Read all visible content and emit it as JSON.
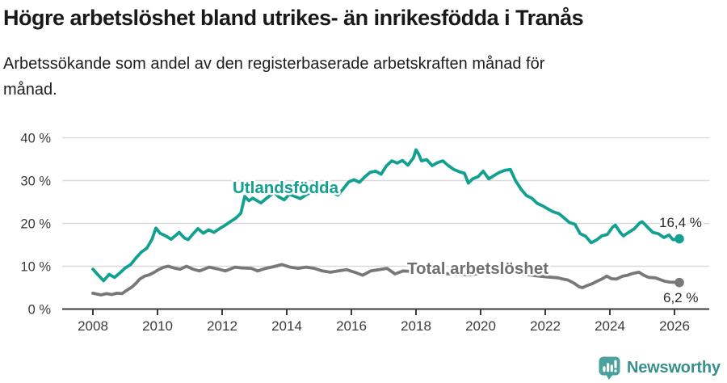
{
  "header": {
    "title": "Högre arbetslöshet bland utrikes- än inrikesfödda i Tranås",
    "subtitle": "Arbetssökande som andel av den registerbaserade arbetskraften månad för månad."
  },
  "footer": {
    "brand": "Newsworthy",
    "brand_color": "#37908B",
    "icon": "bar-chart-speech-bubble-icon",
    "icon_color": "#4BA29D"
  },
  "chart_data": {
    "type": "line",
    "title": "Högre arbetslöshet bland utrikes- än inrikesfödda i Tranås",
    "subtitle": "Arbetssökande som andel av den registerbaserade arbetskraften månad för månad.",
    "xlabel": "",
    "ylabel": "",
    "x_unit": "year (monthly series)",
    "y_unit": "percent of register-based labour force",
    "grid": "horizontal",
    "legend_position": "inline-labels",
    "colors": {
      "gridline": "#dadada",
      "axis": "#3a3a3a",
      "tick_text": "#3a3a3a",
      "end_label_text": "#2b2b2b"
    },
    "xaxis": {
      "range": [
        2007.05,
        2027.1
      ],
      "ticks": [
        {
          "value": 2008,
          "label": "2008"
        },
        {
          "value": 2010,
          "label": "2010"
        },
        {
          "value": 2012,
          "label": "2012"
        },
        {
          "value": 2014,
          "label": "2014"
        },
        {
          "value": 2016,
          "label": "2016"
        },
        {
          "value": 2018,
          "label": "2018"
        },
        {
          "value": 2020,
          "label": "2020"
        },
        {
          "value": 2022,
          "label": "2022"
        },
        {
          "value": 2024,
          "label": "2024"
        },
        {
          "value": 2026,
          "label": "2026"
        }
      ]
    },
    "yaxis": {
      "range": [
        0,
        40
      ],
      "ticks": [
        {
          "value": 0,
          "label": "0 %"
        },
        {
          "value": 10,
          "label": "10 %"
        },
        {
          "value": 20,
          "label": "20 %"
        },
        {
          "value": 30,
          "label": "30 %"
        },
        {
          "value": 40,
          "label": "40 %"
        }
      ]
    },
    "series": [
      {
        "id": "utlandsfodda",
        "name": "Utlandsfödda",
        "color": "#12A091",
        "label_color": "#12A091",
        "end_label": "16,4 %",
        "end_value": 16.4,
        "points": [
          [
            2008.0,
            9.3
          ],
          [
            2008.17,
            7.9
          ],
          [
            2008.33,
            6.6
          ],
          [
            2008.5,
            8.1
          ],
          [
            2008.67,
            7.4
          ],
          [
            2008.83,
            8.4
          ],
          [
            2009.0,
            9.6
          ],
          [
            2009.17,
            10.4
          ],
          [
            2009.33,
            11.9
          ],
          [
            2009.5,
            13.3
          ],
          [
            2009.67,
            14.2
          ],
          [
            2009.83,
            16.3
          ],
          [
            2009.95,
            18.9
          ],
          [
            2010.08,
            17.7
          ],
          [
            2010.25,
            17.1
          ],
          [
            2010.42,
            16.3
          ],
          [
            2010.58,
            17.3
          ],
          [
            2010.67,
            17.9
          ],
          [
            2010.83,
            16.6
          ],
          [
            2010.95,
            16.2
          ],
          [
            2011.08,
            17.4
          ],
          [
            2011.25,
            18.8
          ],
          [
            2011.42,
            17.7
          ],
          [
            2011.58,
            18.5
          ],
          [
            2011.75,
            17.9
          ],
          [
            2011.92,
            18.8
          ],
          [
            2012.08,
            19.5
          ],
          [
            2012.25,
            20.4
          ],
          [
            2012.42,
            21.2
          ],
          [
            2012.58,
            22.4
          ],
          [
            2012.7,
            26.3
          ],
          [
            2012.83,
            25.3
          ],
          [
            2012.95,
            25.9
          ],
          [
            2013.08,
            25.3
          ],
          [
            2013.2,
            24.8
          ],
          [
            2013.33,
            25.6
          ],
          [
            2013.5,
            26.6
          ],
          [
            2013.62,
            27.2
          ],
          [
            2013.75,
            26.2
          ],
          [
            2013.92,
            25.5
          ],
          [
            2014.08,
            26.8
          ],
          [
            2014.25,
            26.3
          ],
          [
            2014.42,
            25.8
          ],
          [
            2014.58,
            26.6
          ],
          [
            2014.75,
            27.3
          ],
          [
            2014.92,
            26.9
          ],
          [
            2015.08,
            27.9
          ],
          [
            2015.25,
            28.3
          ],
          [
            2015.42,
            27.3
          ],
          [
            2015.58,
            26.6
          ],
          [
            2015.75,
            28.1
          ],
          [
            2015.92,
            29.7
          ],
          [
            2016.08,
            30.2
          ],
          [
            2016.25,
            29.6
          ],
          [
            2016.42,
            30.9
          ],
          [
            2016.58,
            31.9
          ],
          [
            2016.75,
            32.2
          ],
          [
            2016.92,
            31.5
          ],
          [
            2017.08,
            33.4
          ],
          [
            2017.25,
            34.6
          ],
          [
            2017.42,
            34.1
          ],
          [
            2017.58,
            34.7
          ],
          [
            2017.75,
            33.6
          ],
          [
            2017.92,
            35.3
          ],
          [
            2018.0,
            37.2
          ],
          [
            2018.08,
            36.2
          ],
          [
            2018.17,
            34.6
          ],
          [
            2018.33,
            34.9
          ],
          [
            2018.5,
            33.5
          ],
          [
            2018.67,
            34.2
          ],
          [
            2018.83,
            34.6
          ],
          [
            2019.0,
            33.5
          ],
          [
            2019.17,
            32.6
          ],
          [
            2019.33,
            32.1
          ],
          [
            2019.5,
            31.7
          ],
          [
            2019.62,
            29.4
          ],
          [
            2019.75,
            30.4
          ],
          [
            2019.92,
            30.9
          ],
          [
            2020.08,
            32.2
          ],
          [
            2020.25,
            30.4
          ],
          [
            2020.42,
            31.2
          ],
          [
            2020.58,
            31.9
          ],
          [
            2020.75,
            32.4
          ],
          [
            2020.92,
            32.6
          ],
          [
            2021.08,
            30.0
          ],
          [
            2021.25,
            28.0
          ],
          [
            2021.42,
            26.5
          ],
          [
            2021.58,
            25.9
          ],
          [
            2021.75,
            24.7
          ],
          [
            2021.92,
            24.1
          ],
          [
            2022.08,
            23.4
          ],
          [
            2022.25,
            22.7
          ],
          [
            2022.42,
            22.3
          ],
          [
            2022.58,
            21.3
          ],
          [
            2022.75,
            20.2
          ],
          [
            2022.92,
            19.8
          ],
          [
            2023.08,
            17.6
          ],
          [
            2023.25,
            17.0
          ],
          [
            2023.42,
            15.5
          ],
          [
            2023.58,
            16.1
          ],
          [
            2023.75,
            17.1
          ],
          [
            2023.92,
            17.4
          ],
          [
            2024.08,
            19.1
          ],
          [
            2024.17,
            19.6
          ],
          [
            2024.33,
            17.8
          ],
          [
            2024.42,
            17.1
          ],
          [
            2024.58,
            17.9
          ],
          [
            2024.75,
            18.7
          ],
          [
            2024.92,
            20.1
          ],
          [
            2025.0,
            20.4
          ],
          [
            2025.17,
            19.1
          ],
          [
            2025.33,
            17.9
          ],
          [
            2025.5,
            17.6
          ],
          [
            2025.67,
            16.7
          ],
          [
            2025.83,
            17.3
          ],
          [
            2025.95,
            16.2
          ],
          [
            2026.15,
            16.4
          ]
        ]
      },
      {
        "id": "total",
        "name": "Total arbetslöshet",
        "color": "#787878",
        "label_color": "#6f6f6f",
        "end_label": "6,2 %",
        "end_value": 6.2,
        "points": [
          [
            2008.0,
            3.7
          ],
          [
            2008.25,
            3.3
          ],
          [
            2008.42,
            3.6
          ],
          [
            2008.58,
            3.4
          ],
          [
            2008.75,
            3.7
          ],
          [
            2008.9,
            3.6
          ],
          [
            2009.05,
            4.4
          ],
          [
            2009.2,
            5.1
          ],
          [
            2009.33,
            6.0
          ],
          [
            2009.45,
            7.0
          ],
          [
            2009.6,
            7.7
          ],
          [
            2009.75,
            8.0
          ],
          [
            2009.9,
            8.6
          ],
          [
            2010.05,
            9.3
          ],
          [
            2010.2,
            9.8
          ],
          [
            2010.33,
            10.0
          ],
          [
            2010.5,
            9.6
          ],
          [
            2010.7,
            9.3
          ],
          [
            2010.9,
            10.0
          ],
          [
            2011.1,
            9.3
          ],
          [
            2011.3,
            8.9
          ],
          [
            2011.6,
            9.8
          ],
          [
            2011.9,
            9.3
          ],
          [
            2012.1,
            8.9
          ],
          [
            2012.4,
            9.8
          ],
          [
            2012.6,
            9.6
          ],
          [
            2012.9,
            9.5
          ],
          [
            2013.1,
            8.9
          ],
          [
            2013.35,
            9.5
          ],
          [
            2013.6,
            9.9
          ],
          [
            2013.85,
            10.4
          ],
          [
            2014.1,
            9.8
          ],
          [
            2014.35,
            9.5
          ],
          [
            2014.6,
            9.8
          ],
          [
            2014.85,
            9.5
          ],
          [
            2015.1,
            8.9
          ],
          [
            2015.35,
            8.6
          ],
          [
            2015.6,
            8.9
          ],
          [
            2015.85,
            9.2
          ],
          [
            2016.1,
            8.6
          ],
          [
            2016.35,
            7.9
          ],
          [
            2016.6,
            8.9
          ],
          [
            2016.85,
            9.2
          ],
          [
            2017.1,
            9.5
          ],
          [
            2017.35,
            8.2
          ],
          [
            2017.6,
            8.9
          ],
          [
            2017.85,
            8.8
          ],
          [
            2018.1,
            8.7
          ],
          [
            2018.5,
            8.5
          ],
          [
            2018.9,
            8.3
          ],
          [
            2019.3,
            8.1
          ],
          [
            2019.7,
            8.0
          ],
          [
            2020.0,
            8.4
          ],
          [
            2020.3,
            9.1
          ],
          [
            2020.6,
            8.9
          ],
          [
            2020.9,
            8.6
          ],
          [
            2021.2,
            8.3
          ],
          [
            2021.5,
            8.0
          ],
          [
            2021.8,
            7.7
          ],
          [
            2022.1,
            7.5
          ],
          [
            2022.4,
            7.3
          ],
          [
            2022.55,
            7.0
          ],
          [
            2022.7,
            6.8
          ],
          [
            2022.9,
            6.0
          ],
          [
            2023.05,
            5.2
          ],
          [
            2023.15,
            5.0
          ],
          [
            2023.3,
            5.5
          ],
          [
            2023.45,
            5.9
          ],
          [
            2023.6,
            6.5
          ],
          [
            2023.75,
            7.0
          ],
          [
            2023.9,
            7.7
          ],
          [
            2024.05,
            7.1
          ],
          [
            2024.2,
            7.0
          ],
          [
            2024.4,
            7.7
          ],
          [
            2024.55,
            7.9
          ],
          [
            2024.7,
            8.3
          ],
          [
            2024.9,
            8.6
          ],
          [
            2025.05,
            7.9
          ],
          [
            2025.2,
            7.4
          ],
          [
            2025.4,
            7.3
          ],
          [
            2025.55,
            6.9
          ],
          [
            2025.7,
            6.5
          ],
          [
            2025.85,
            6.3
          ],
          [
            2026.15,
            6.2
          ]
        ]
      }
    ]
  }
}
